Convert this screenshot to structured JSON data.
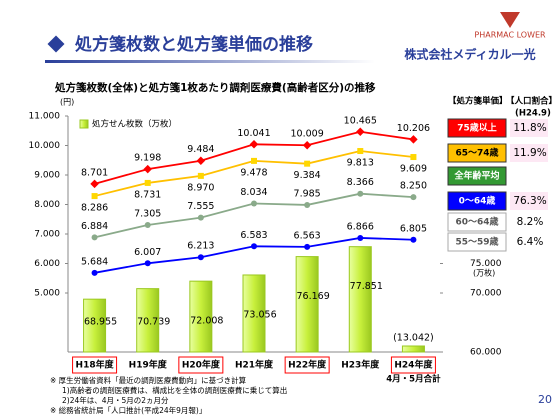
{
  "title": "処方箋枚数と処方箋単価の推移",
  "logo": {
    "brand": "PHARMAC LOWER",
    "company": "株式会社メディカル一光"
  },
  "page_number": "20",
  "chart_data": {
    "type": "bar_line",
    "subtitle": "処方箋枚数(全体)と処方箋1枚あたり調剤医療費(高齢者区分)の推移",
    "y_unit": "(円)",
    "y2_unit": "(万枚)",
    "categories": [
      "H18年度",
      "H19年度",
      "H20年度",
      "H21年度",
      "H22年度",
      "H23年度",
      "H24年度"
    ],
    "category_note": "4月・5月合計",
    "ylim": [
      3000,
      11000
    ],
    "yticks": [
      {
        "value": 5000,
        "label": "5.000"
      },
      {
        "value": 6000,
        "label": "6.000"
      },
      {
        "value": 7000,
        "label": "7.000"
      },
      {
        "value": 8000,
        "label": "8.000"
      },
      {
        "value": 9000,
        "label": "9.000"
      },
      {
        "value": 10000,
        "label": "10.000"
      },
      {
        "value": 11000,
        "label": "11.000"
      }
    ],
    "y2lim": [
      60000,
      100000
    ],
    "y2ticks": [
      {
        "value": 60000,
        "label": "60.000"
      },
      {
        "value": 70000,
        "label": "70.000"
      },
      {
        "value": 75000,
        "label": "75.000"
      }
    ],
    "bars": {
      "name": "処方せん枚数（万枚）",
      "color": "#c8f03c",
      "axis": "y2",
      "values": [
        68955,
        70739,
        72008,
        73056,
        76169,
        77851,
        13042
      ],
      "value_labels": [
        "68.955",
        "70.739",
        "72.008",
        "73.056",
        "76.169",
        "77.851",
        "(13.042)"
      ]
    },
    "series": [
      {
        "name": "75歳以上",
        "color": "#ff0000",
        "values": [
          8701,
          9198,
          9484,
          10041,
          10009,
          10465,
          10206
        ],
        "value_labels": [
          "8.701",
          "9.198",
          "9.484",
          "10.041",
          "10.009",
          "10.465",
          "10.206"
        ]
      },
      {
        "name": "65～74歳",
        "color": "#ffc000",
        "values": [
          8286,
          8731,
          8970,
          9478,
          9384,
          9813,
          9609
        ],
        "value_labels": [
          "8.286",
          "8.731",
          "8.970",
          "9.478",
          "9.384",
          "9.813",
          "9.609"
        ]
      },
      {
        "name": "全年齢平均",
        "color": "#8aaa8a",
        "values": [
          6884,
          7305,
          7555,
          8034,
          7985,
          8366,
          8250
        ],
        "value_labels": [
          "6.884",
          "7.305",
          "7.555",
          "8.034",
          "7.985",
          "8.366",
          "8.250"
        ]
      },
      {
        "name": "0～64歳",
        "color": "#0000ff",
        "values": [
          5684,
          6007,
          6213,
          6583,
          6563,
          6866,
          6805
        ],
        "value_labels": [
          "5.684",
          "6.007",
          "6.213",
          "6.583",
          "6.563",
          "6.866",
          "6.805"
        ]
      }
    ],
    "panel": {
      "price_header": "【処方箋単価】",
      "share_header": "【人口割合】",
      "share_note": "(H24.9)",
      "shares": [
        "11.8%",
        "11.9%",
        null,
        "76.3%",
        "8.2%",
        "6.4%"
      ],
      "extra_groups": [
        "60～64歳",
        "55～59歳"
      ]
    },
    "footnotes": [
      "※ 厚生労働省資料「最近の調剤医療費動向」に基づき計算",
      "1)高齢者の調剤医療費は、構成比を全体の調剤医療費に乗じて算出",
      "2)24年は、4月・5月の2ヵ月分",
      "※ 総務省統計局「人口推計(平成24年9月報)」"
    ]
  }
}
